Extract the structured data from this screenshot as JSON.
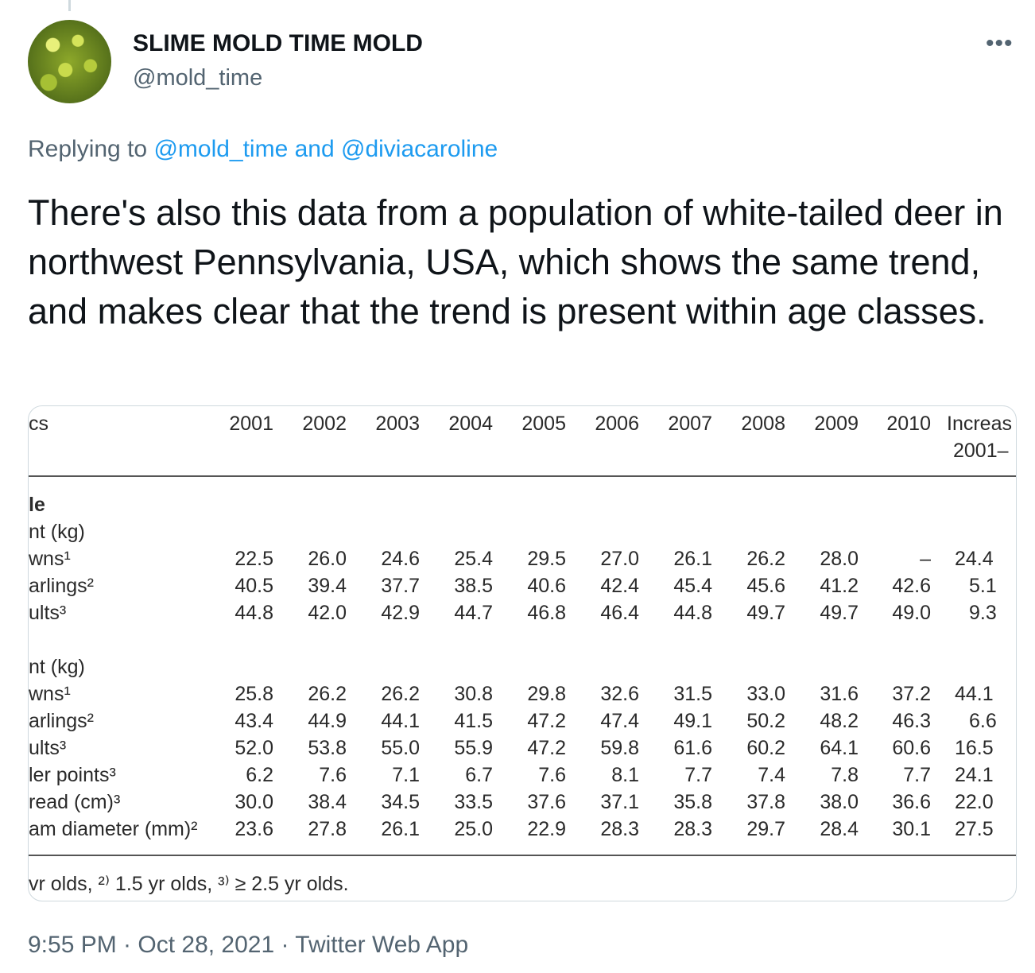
{
  "author": {
    "name": "SLIME MOLD TIME MOLD",
    "handle": "@mold_time"
  },
  "more_icon": "more-horizontal-icon",
  "reply": {
    "prefix": "Replying to ",
    "mentions": "@mold_time and @diviacaroline"
  },
  "tweet_text": "There's also this data from a population of white-tailed deer in northwest Pennsylvania, USA, which shows the same trend, and makes clear that the trend is present within age classes.",
  "table": {
    "header_label": "cs",
    "years": [
      "2001",
      "2002",
      "2003",
      "2004",
      "2005",
      "2006",
      "2007",
      "2008",
      "2009",
      "2010"
    ],
    "increase_header": [
      "Increas",
      "2001–"
    ],
    "section_label": "le",
    "rows": [
      {
        "label": "nt (kg)",
        "values": [],
        "increase": ""
      },
      {
        "label": "wns¹",
        "values": [
          "22.5",
          "26.0",
          "24.6",
          "25.4",
          "29.5",
          "27.0",
          "26.1",
          "26.2",
          "28.0",
          "–"
        ],
        "increase": "24.4"
      },
      {
        "label": "arlings²",
        "values": [
          "40.5",
          "39.4",
          "37.7",
          "38.5",
          "40.6",
          "42.4",
          "45.4",
          "45.6",
          "41.2",
          "42.6"
        ],
        "increase": "5.1"
      },
      {
        "label": "ults³",
        "values": [
          "44.8",
          "42.0",
          "42.9",
          "44.7",
          "46.8",
          "46.4",
          "44.8",
          "49.7",
          "49.7",
          "49.0"
        ],
        "increase": "9.3"
      },
      {
        "label": "",
        "values": [],
        "increase": ""
      },
      {
        "label": "nt (kg)",
        "values": [],
        "increase": ""
      },
      {
        "label": "wns¹",
        "values": [
          "25.8",
          "26.2",
          "26.2",
          "30.8",
          "29.8",
          "32.6",
          "31.5",
          "33.0",
          "31.6",
          "37.2"
        ],
        "increase": "44.1"
      },
      {
        "label": "arlings²",
        "values": [
          "43.4",
          "44.9",
          "44.1",
          "41.5",
          "47.2",
          "47.4",
          "49.1",
          "50.2",
          "48.2",
          "46.3"
        ],
        "increase": "6.6"
      },
      {
        "label": "ults³",
        "values": [
          "52.0",
          "53.8",
          "55.0",
          "55.9",
          "47.2",
          "59.8",
          "61.6",
          "60.2",
          "64.1",
          "60.6"
        ],
        "increase": "16.5"
      },
      {
        "label": "ler points³",
        "values": [
          "6.2",
          "7.6",
          "7.1",
          "6.7",
          "7.6",
          "8.1",
          "7.7",
          "7.4",
          "7.8",
          "7.7"
        ],
        "increase": "24.1"
      },
      {
        "label": "read (cm)³",
        "values": [
          "30.0",
          "38.4",
          "34.5",
          "33.5",
          "37.6",
          "37.1",
          "35.8",
          "37.8",
          "38.0",
          "36.6"
        ],
        "increase": "22.0"
      },
      {
        "label": "am diameter (mm)²",
        "values": [
          "23.6",
          "27.8",
          "26.1",
          "25.0",
          "22.9",
          "28.3",
          "28.3",
          "29.7",
          "28.4",
          "30.1"
        ],
        "increase": "27.5"
      }
    ],
    "footnote": "vr olds, ²⁾ 1.5 yr olds, ³⁾ ≥ 2.5 yr olds."
  },
  "timestamp": "9:55 PM · Oct 28, 2021 · Twitter Web App"
}
